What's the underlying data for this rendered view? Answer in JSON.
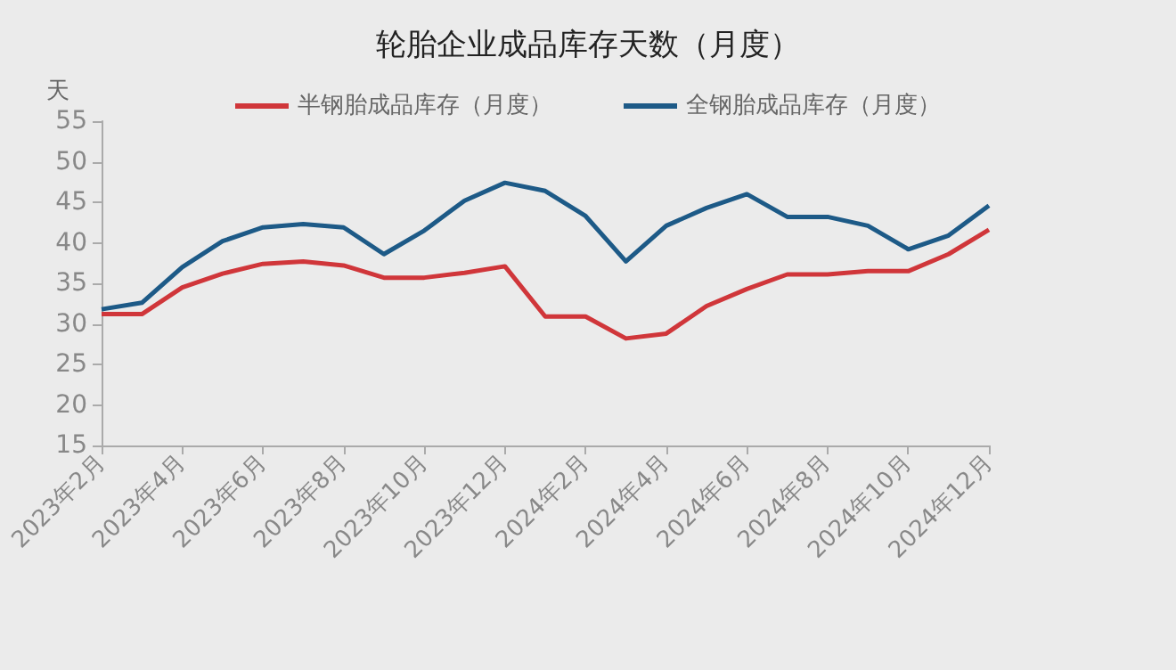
{
  "chart_data": {
    "type": "line",
    "title": "轮胎企业成品库存天数（月度）",
    "ylabel": "天",
    "categories": [
      "2023年2月",
      null,
      "2023年4月",
      null,
      "2023年6月",
      null,
      "2023年8月",
      null,
      "2023年10月",
      null,
      "2023年12月",
      null,
      "2024年2月",
      null,
      "2024年4月",
      null,
      "2024年6月",
      null,
      "2024年8月",
      null,
      "2024年10月",
      null,
      "2024年12月"
    ],
    "series": [
      {
        "name": "半钢胎成品库存（月度）",
        "color": "#d0363a",
        "values": [
          31.2,
          31.2,
          34.5,
          36.2,
          37.4,
          37.7,
          37.2,
          35.7,
          35.7,
          36.3,
          37.1,
          30.9,
          30.9,
          28.2,
          28.8,
          32.2,
          34.3,
          36.1,
          36.1,
          36.5,
          36.5,
          38.6,
          41.6
        ]
      },
      {
        "name": "全钢胎成品库存（月度）",
        "color": "#1d5a87",
        "values": [
          31.8,
          32.6,
          37.0,
          40.2,
          41.9,
          42.3,
          41.9,
          38.6,
          41.5,
          45.2,
          47.4,
          46.4,
          43.3,
          37.7,
          42.1,
          44.3,
          46.0,
          43.2,
          43.2,
          42.1,
          39.2,
          40.9,
          44.6
        ]
      }
    ],
    "ylim": [
      15,
      55
    ],
    "yticks": [
      15,
      20,
      25,
      30,
      35,
      40,
      45,
      50,
      55
    ],
    "grid": false,
    "legend": "top",
    "marker": "none",
    "line_style": "solid"
  }
}
